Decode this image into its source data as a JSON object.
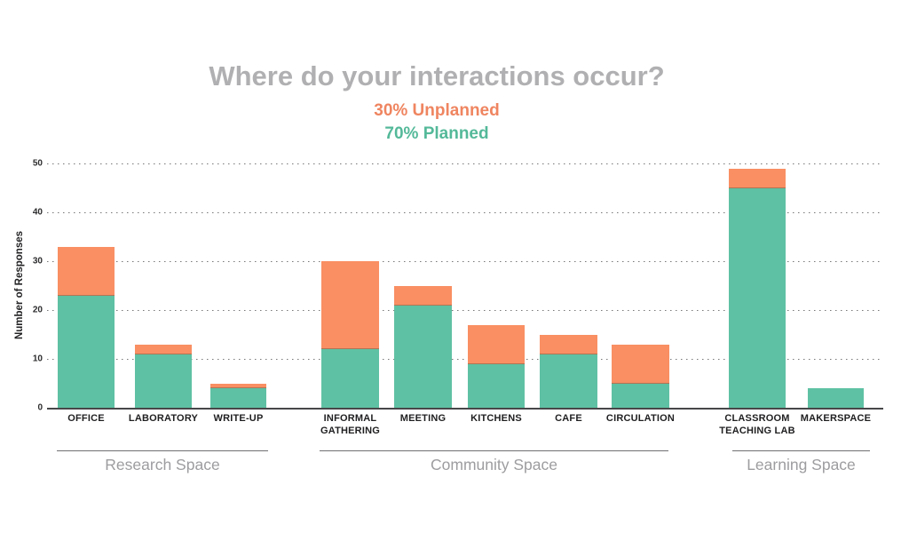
{
  "title": "Where do your interactions occur?",
  "subtitles": {
    "unplanned": "30% Unplanned",
    "planned": "70% Planned"
  },
  "colors": {
    "bar_unplanned": "#f98f63",
    "bar_planned": "#5fc1a3",
    "subtitle_unplanned": "#ef8560",
    "subtitle_planned": "#54b999",
    "title_gray": "#b0b0b2",
    "group_label_gray": "#9d9da0",
    "axis_dark": "#47474a"
  },
  "chart_data": {
    "type": "bar",
    "stacked": true,
    "title": "Where do your interactions occur?",
    "xlabel": "",
    "ylabel": "Number of Responses",
    "ylim": [
      0,
      50
    ],
    "yticks": [
      0,
      10,
      20,
      30,
      40,
      50
    ],
    "grid": "horizontal dotted",
    "legend_position": "subtitle",
    "series_names": [
      "Planned",
      "Unplanned"
    ],
    "groups": [
      {
        "label": "Research Space",
        "categories": [
          {
            "label": "OFFICE",
            "label_lines": [
              "OFFICE"
            ],
            "planned": 23,
            "unplanned": 10,
            "total": 33
          },
          {
            "label": "LABORATORY",
            "label_lines": [
              "LABORATORY"
            ],
            "planned": 11,
            "unplanned": 2,
            "total": 13
          },
          {
            "label": "WRITE-UP",
            "label_lines": [
              "WRITE-UP"
            ],
            "planned": 4,
            "unplanned": 1,
            "total": 5
          }
        ]
      },
      {
        "label": "Community Space",
        "categories": [
          {
            "label": "INFORMAL GATHERING",
            "label_lines": [
              "INFORMAL",
              "GATHERING"
            ],
            "planned": 12,
            "unplanned": 18,
            "total": 30
          },
          {
            "label": "MEETING",
            "label_lines": [
              "MEETING"
            ],
            "planned": 21,
            "unplanned": 4,
            "total": 25
          },
          {
            "label": "KITCHENS",
            "label_lines": [
              "KITCHENS"
            ],
            "planned": 9,
            "unplanned": 8,
            "total": 17
          },
          {
            "label": "CAFE",
            "label_lines": [
              "CAFE"
            ],
            "planned": 11,
            "unplanned": 4,
            "total": 15
          },
          {
            "label": "CIRCULATION",
            "label_lines": [
              "CIRCULATION"
            ],
            "planned": 5,
            "unplanned": 8,
            "total": 13
          }
        ]
      },
      {
        "label": "Learning Space",
        "categories": [
          {
            "label": "CLASSROOM TEACHING LAB",
            "label_lines": [
              "CLASSROOM",
              "TEACHING LAB"
            ],
            "planned": 45,
            "unplanned": 4,
            "total": 49
          },
          {
            "label": "MAKERSPACE",
            "label_lines": [
              "MAKERSPACE"
            ],
            "planned": 4,
            "unplanned": 0,
            "total": 4
          }
        ]
      }
    ]
  }
}
